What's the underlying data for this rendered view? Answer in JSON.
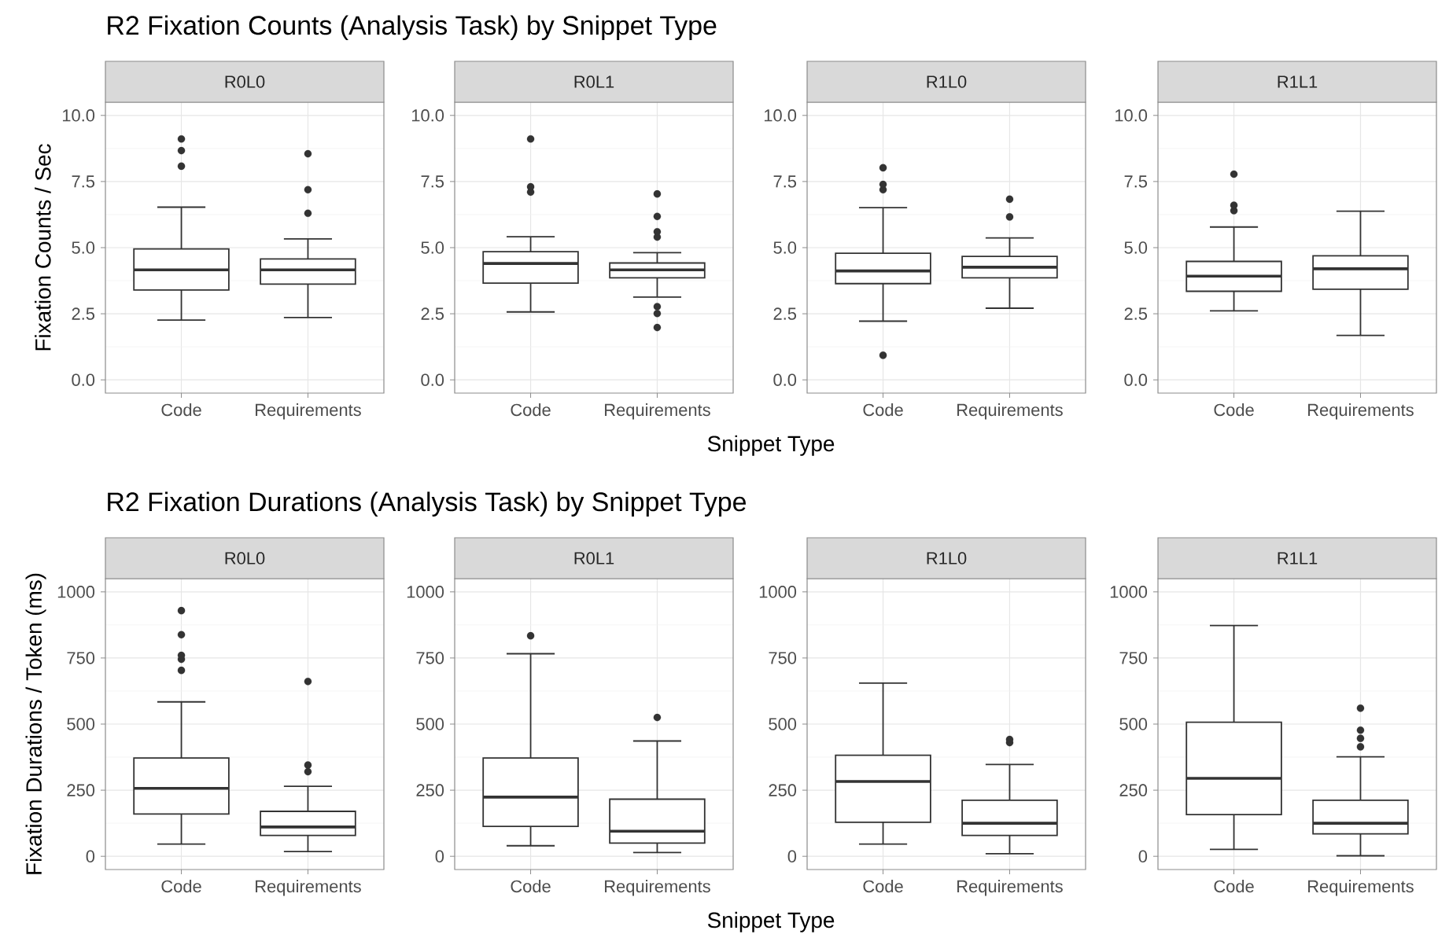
{
  "chart_data": [
    {
      "type": "box",
      "title": "R2 Fixation Counts (Analysis Task) by Snippet Type",
      "subtitle": "R0L0",
      "ylabel": "Fixation Counts / Sec",
      "categories": [
        "Code",
        "Requirements"
      ],
      "ylim": [
        -0.5,
        10.5
      ],
      "yticks": [
        {
          "value": 0,
          "label": "0.0"
        },
        {
          "value": 2.5,
          "label": "2.5"
        },
        {
          "value": 5,
          "label": "5.0"
        },
        {
          "value": 7.5,
          "label": "7.5"
        },
        {
          "value": 10,
          "label": "10.0"
        }
      ],
      "grid": true,
      "boxes": [
        {
          "low": 2.26,
          "q1": 3.4,
          "median": 4.16,
          "q3": 4.95,
          "high": 6.53,
          "outliers": [
            8.08,
            8.67,
            9.11
          ]
        },
        {
          "low": 2.36,
          "q1": 3.62,
          "median": 4.16,
          "q3": 4.57,
          "high": 5.33,
          "outliers": [
            6.3,
            7.19,
            8.55
          ]
        }
      ]
    },
    {
      "type": "box",
      "subtitle": "R0L1",
      "xlabel": "Snippet Type",
      "categories": [
        "Code",
        "Requirements"
      ],
      "ylim": [
        -0.5,
        10.5
      ],
      "yticks": [
        {
          "value": 0,
          "label": "0.0"
        },
        {
          "value": 2.5,
          "label": "2.5"
        },
        {
          "value": 5,
          "label": "5.0"
        },
        {
          "value": 7.5,
          "label": "7.5"
        },
        {
          "value": 10,
          "label": "10.0"
        }
      ],
      "grid": true,
      "boxes": [
        {
          "low": 2.57,
          "q1": 3.66,
          "median": 4.4,
          "q3": 4.85,
          "high": 5.41,
          "outliers": [
            7.1,
            7.3,
            9.11
          ]
        },
        {
          "low": 3.13,
          "q1": 3.86,
          "median": 4.16,
          "q3": 4.42,
          "high": 4.81,
          "outliers": [
            1.98,
            2.51,
            2.77,
            5.4,
            5.6,
            6.18,
            7.03
          ]
        }
      ]
    },
    {
      "type": "box",
      "subtitle": "R1L0",
      "categories": [
        "Code",
        "Requirements"
      ],
      "ylim": [
        -0.5,
        10.5
      ],
      "yticks": [
        {
          "value": 0,
          "label": "0.0"
        },
        {
          "value": 2.5,
          "label": "2.5"
        },
        {
          "value": 5,
          "label": "5.0"
        },
        {
          "value": 7.5,
          "label": "7.5"
        },
        {
          "value": 10,
          "label": "10.0"
        }
      ],
      "grid": true,
      "boxes": [
        {
          "low": 2.22,
          "q1": 3.64,
          "median": 4.12,
          "q3": 4.79,
          "high": 6.51,
          "outliers": [
            0.93,
            7.19,
            7.39,
            8.02
          ]
        },
        {
          "low": 2.71,
          "q1": 3.86,
          "median": 4.26,
          "q3": 4.67,
          "high": 5.37,
          "outliers": [
            6.16,
            6.83
          ]
        }
      ]
    },
    {
      "type": "box",
      "subtitle": "R1L1",
      "categories": [
        "Code",
        "Requirements"
      ],
      "ylim": [
        -0.5,
        10.5
      ],
      "yticks": [
        {
          "value": 0,
          "label": "0.0"
        },
        {
          "value": 2.5,
          "label": "2.5"
        },
        {
          "value": 5,
          "label": "5.0"
        },
        {
          "value": 7.5,
          "label": "7.5"
        },
        {
          "value": 10,
          "label": "10.0"
        }
      ],
      "grid": true,
      "boxes": [
        {
          "low": 2.61,
          "q1": 3.35,
          "median": 3.92,
          "q3": 4.48,
          "high": 5.78,
          "outliers": [
            6.4,
            6.6,
            7.78
          ]
        },
        {
          "low": 1.68,
          "q1": 3.43,
          "median": 4.2,
          "q3": 4.69,
          "high": 6.38
        }
      ]
    },
    {
      "type": "box",
      "title": "R2 Fixation Durations (Analysis Task) by Snippet Type",
      "subtitle": "R0L0",
      "ylabel": "Fixation Durations / Token (ms)",
      "categories": [
        "Code",
        "Requirements"
      ],
      "ylim": [
        -50,
        1050
      ],
      "yticks": [
        0,
        250,
        500,
        750,
        1000
      ],
      "grid": true,
      "boxes": [
        {
          "low": 46,
          "q1": 160,
          "median": 257,
          "q3": 372,
          "high": 584,
          "outliers": [
            703,
            745,
            760,
            838,
            929
          ]
        },
        {
          "low": 18,
          "q1": 79,
          "median": 111,
          "q3": 170,
          "high": 265,
          "outliers": [
            320,
            345,
            661
          ]
        }
      ]
    },
    {
      "type": "box",
      "subtitle": "R0L1",
      "xlabel": "Snippet Type",
      "categories": [
        "Code",
        "Requirements"
      ],
      "ylim": [
        -50,
        1050
      ],
      "yticks": [
        0,
        250,
        500,
        750,
        1000
      ],
      "grid": true,
      "boxes": [
        {
          "low": 40,
          "q1": 113,
          "median": 224,
          "q3": 372,
          "high": 766,
          "outliers": [
            834
          ]
        },
        {
          "low": 14,
          "q1": 50,
          "median": 95,
          "q3": 216,
          "high": 436,
          "outliers": [
            525
          ]
        }
      ]
    },
    {
      "type": "box",
      "subtitle": "R1L0",
      "categories": [
        "Code",
        "Requirements"
      ],
      "ylim": [
        -50,
        1050
      ],
      "yticks": [
        0,
        250,
        500,
        750,
        1000
      ],
      "grid": true,
      "boxes": [
        {
          "low": 46,
          "q1": 129,
          "median": 283,
          "q3": 382,
          "high": 655
        },
        {
          "low": 10,
          "q1": 79,
          "median": 125,
          "q3": 212,
          "high": 347,
          "outliers": [
            430,
            442
          ]
        }
      ]
    },
    {
      "type": "box",
      "subtitle": "R1L1",
      "categories": [
        "Code",
        "Requirements"
      ],
      "ylim": [
        -50,
        1050
      ],
      "yticks": [
        0,
        250,
        500,
        750,
        1000
      ],
      "grid": true,
      "boxes": [
        {
          "low": 26,
          "q1": 158,
          "median": 295,
          "q3": 507,
          "high": 873
        },
        {
          "low": 2,
          "q1": 85,
          "median": 125,
          "q3": 212,
          "high": 376,
          "outliers": [
            414,
            446,
            477,
            560
          ]
        }
      ]
    }
  ]
}
